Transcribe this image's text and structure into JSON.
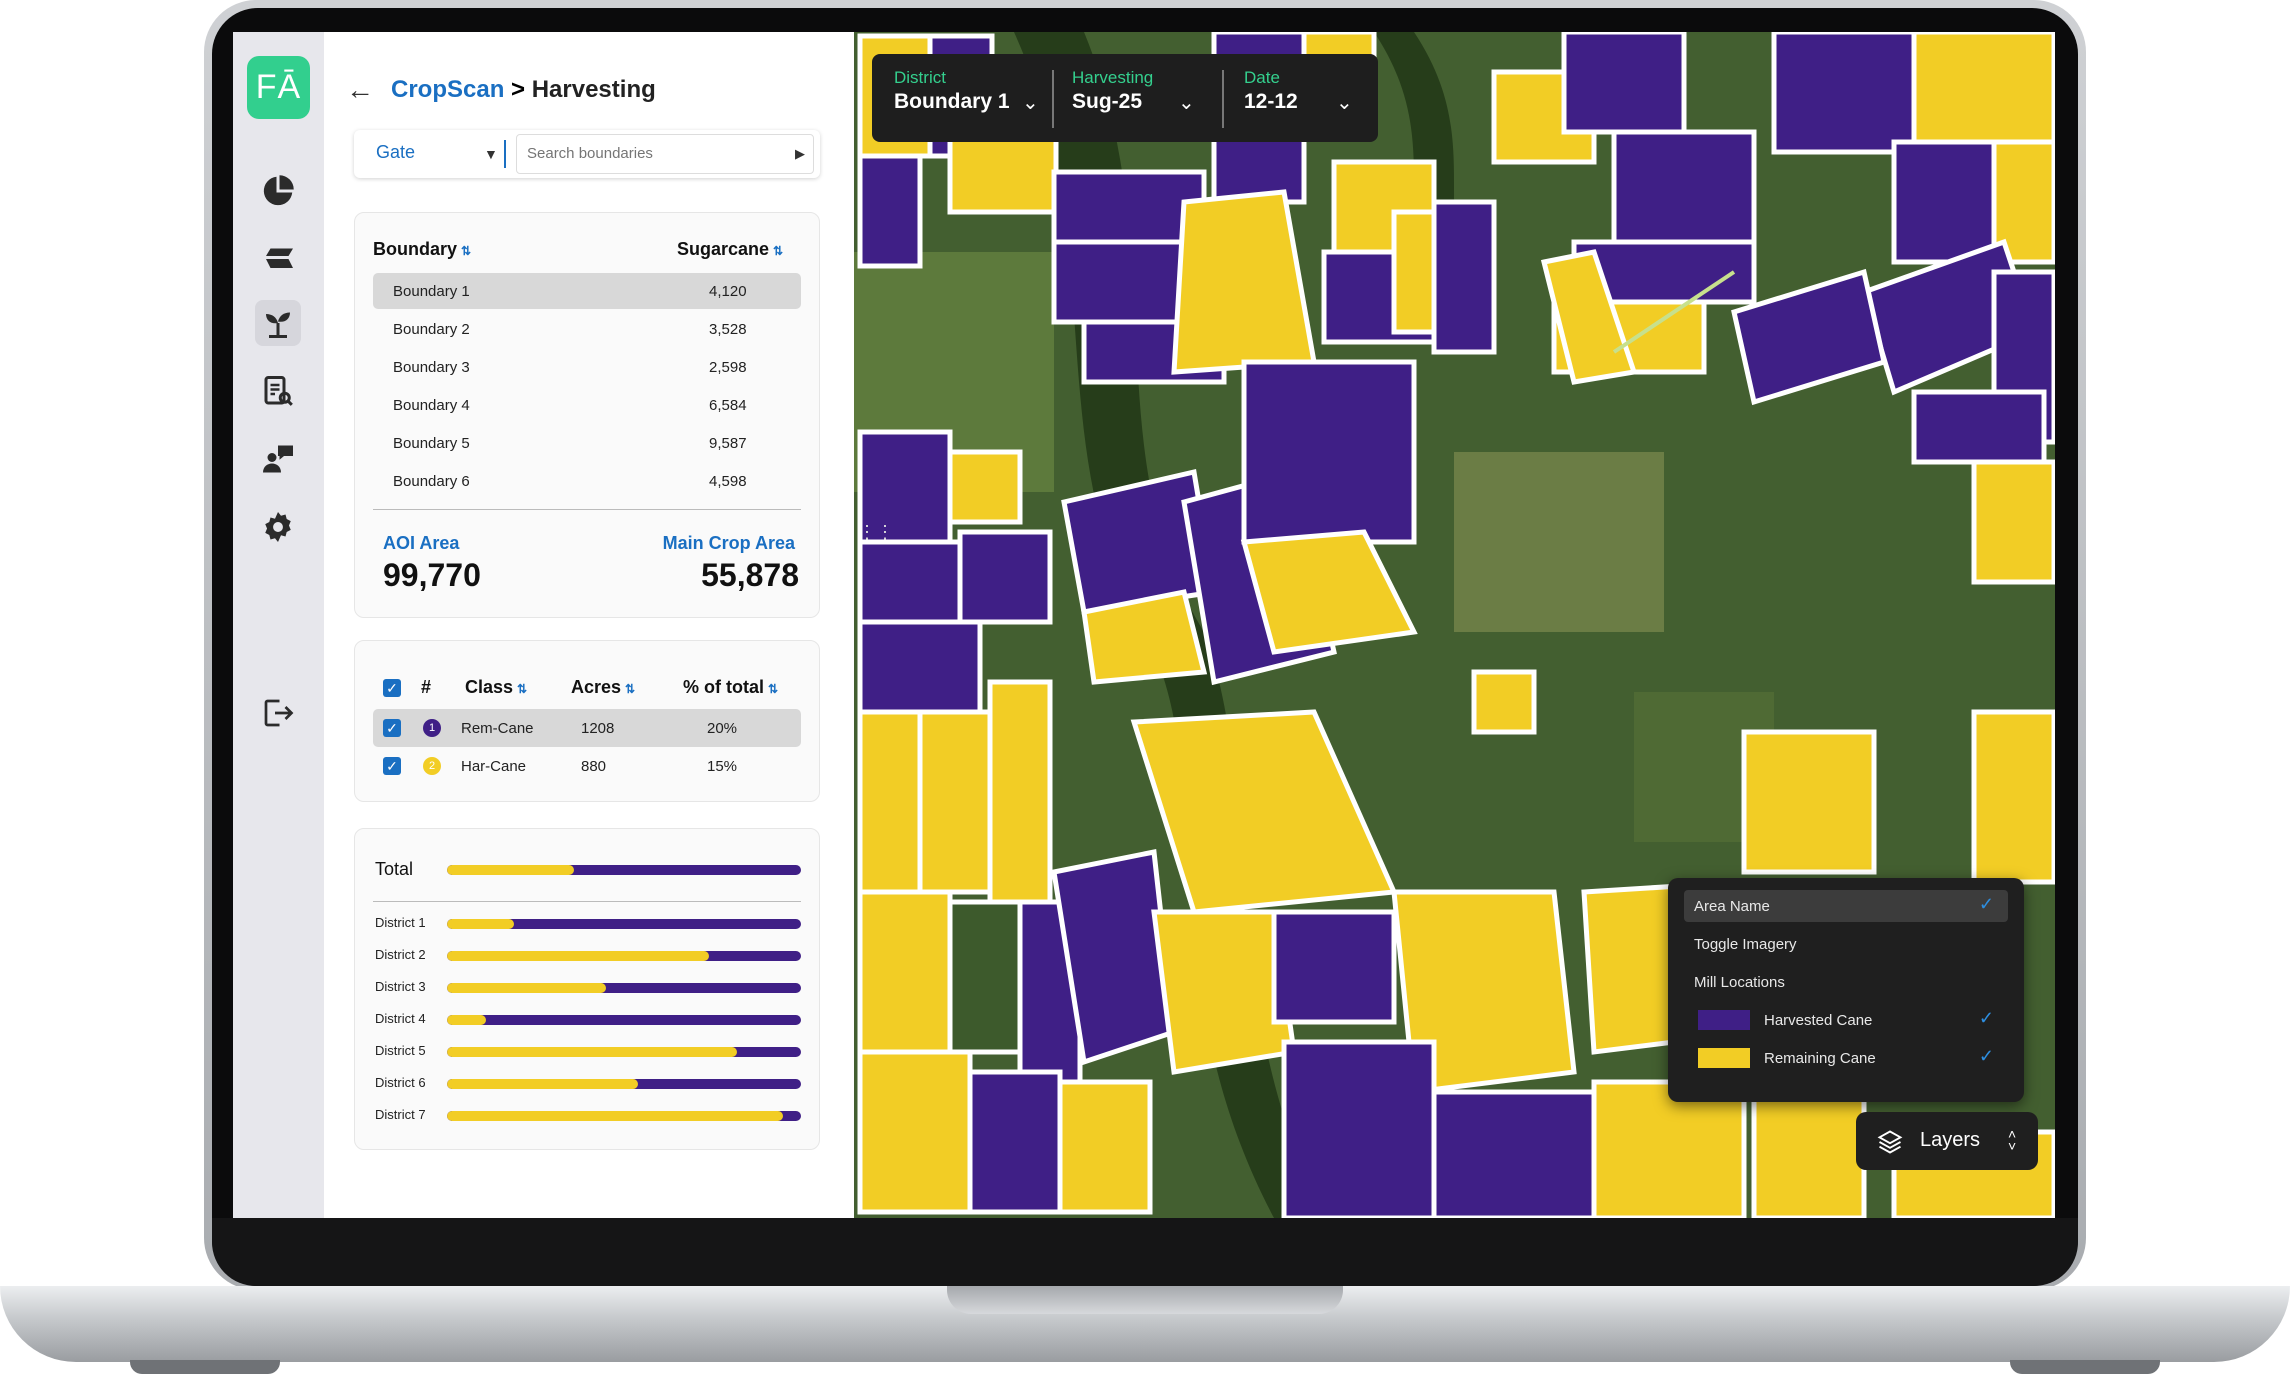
{
  "colors": {
    "accent": "#1a6fc2",
    "brand": "#32cf8e",
    "harvested": "#3f1f86",
    "remaining": "#f2cd25"
  },
  "logo": {
    "text": "FĀ"
  },
  "rail": {
    "icons": [
      "pie-chart-icon",
      "layers-stack-icon",
      "sprout-icon",
      "report-search-icon",
      "farmer-chat-icon",
      "settings-gear-icon",
      "logout-icon"
    ]
  },
  "header": {
    "root": "CropScan",
    "separator": " > ",
    "current": "Harvesting"
  },
  "search": {
    "gate_label": "Gate",
    "placeholder": "Search boundaries"
  },
  "boundaries": {
    "col_name": "Boundary",
    "col_value": "Sugarcane",
    "rows": [
      {
        "name": "Boundary 1",
        "value": "4,120"
      },
      {
        "name": "Boundary 2",
        "value": "3,528"
      },
      {
        "name": "Boundary 3",
        "value": "2,598"
      },
      {
        "name": "Boundary 4",
        "value": "6,584"
      },
      {
        "name": "Boundary 5",
        "value": "9,587"
      },
      {
        "name": "Boundary 6",
        "value": "4,598"
      }
    ],
    "aoi_label": "AOI Area",
    "aoi_value": "99,770",
    "main_label": "Main Crop Area",
    "main_value": "55,878"
  },
  "classes": {
    "col_hash": "#",
    "col_class": "Class",
    "col_acres": "Acres",
    "col_pct": "% of total",
    "rows": [
      {
        "num": "1",
        "name": "Rem-Cane",
        "acres": "1208",
        "pct": "20%"
      },
      {
        "num": "2",
        "name": "Har-Cane",
        "acres": "880",
        "pct": "15%"
      }
    ]
  },
  "totals": {
    "label": "Total",
    "total_fraction": 0.36,
    "districts": [
      {
        "name": "District 1",
        "fraction": 0.19
      },
      {
        "name": "District 2",
        "fraction": 0.74
      },
      {
        "name": "District 3",
        "fraction": 0.45
      },
      {
        "name": "District 4",
        "fraction": 0.11
      },
      {
        "name": "District 5",
        "fraction": 0.82
      },
      {
        "name": "District 6",
        "fraction": 0.54
      },
      {
        "name": "District 7",
        "fraction": 0.95
      }
    ]
  },
  "filters": [
    {
      "label": "District",
      "value": "Boundary 1"
    },
    {
      "label": "Harvesting",
      "value": "Sug-25"
    },
    {
      "label": "Date",
      "value": "12-12"
    }
  ],
  "layers": {
    "items": [
      {
        "label": "Area Name",
        "checked": true
      },
      {
        "label": "Toggle Imagery",
        "checked": false
      },
      {
        "label": "Mill Locations",
        "checked": false
      },
      {
        "label": "Harvested Cane",
        "checked": true
      },
      {
        "label": "Remaining Cane",
        "checked": true
      }
    ],
    "button_label": "Layers"
  }
}
